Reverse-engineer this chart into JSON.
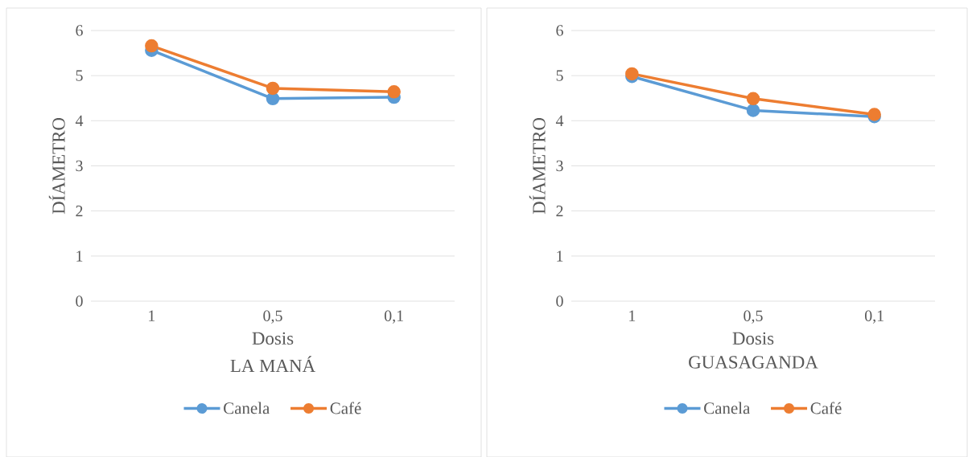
{
  "chart_data": [
    {
      "type": "line",
      "title": "LA MANÁ",
      "xlabel": "Dosis",
      "ylabel": "DÍAMETRO",
      "categories": [
        "1",
        "0,5",
        "0,1"
      ],
      "series": [
        {
          "name": "Canela",
          "color": "#5b9bd5",
          "values": [
            5.56,
            4.49,
            4.52
          ]
        },
        {
          "name": "Café",
          "color": "#ed7d31",
          "values": [
            5.66,
            4.72,
            4.64
          ]
        }
      ],
      "ylim": [
        0,
        6
      ],
      "yticks": [
        0,
        1,
        2,
        3,
        4,
        5,
        6
      ],
      "grid": "y",
      "legend": "bottom",
      "marker": "circle"
    },
    {
      "type": "line",
      "title": "GUASAGANDA",
      "xlabel": "Dosis",
      "ylabel": "DÍAMETRO",
      "categories": [
        "1",
        "0,5",
        "0,1"
      ],
      "series": [
        {
          "name": "Canela",
          "color": "#5b9bd5",
          "values": [
            4.98,
            4.23,
            4.09
          ]
        },
        {
          "name": "Café",
          "color": "#ed7d31",
          "values": [
            5.04,
            4.49,
            4.14
          ]
        }
      ],
      "ylim": [
        0,
        6
      ],
      "yticks": [
        0,
        1,
        2,
        3,
        4,
        5,
        6
      ],
      "grid": "y",
      "legend": "bottom",
      "marker": "circle"
    }
  ]
}
